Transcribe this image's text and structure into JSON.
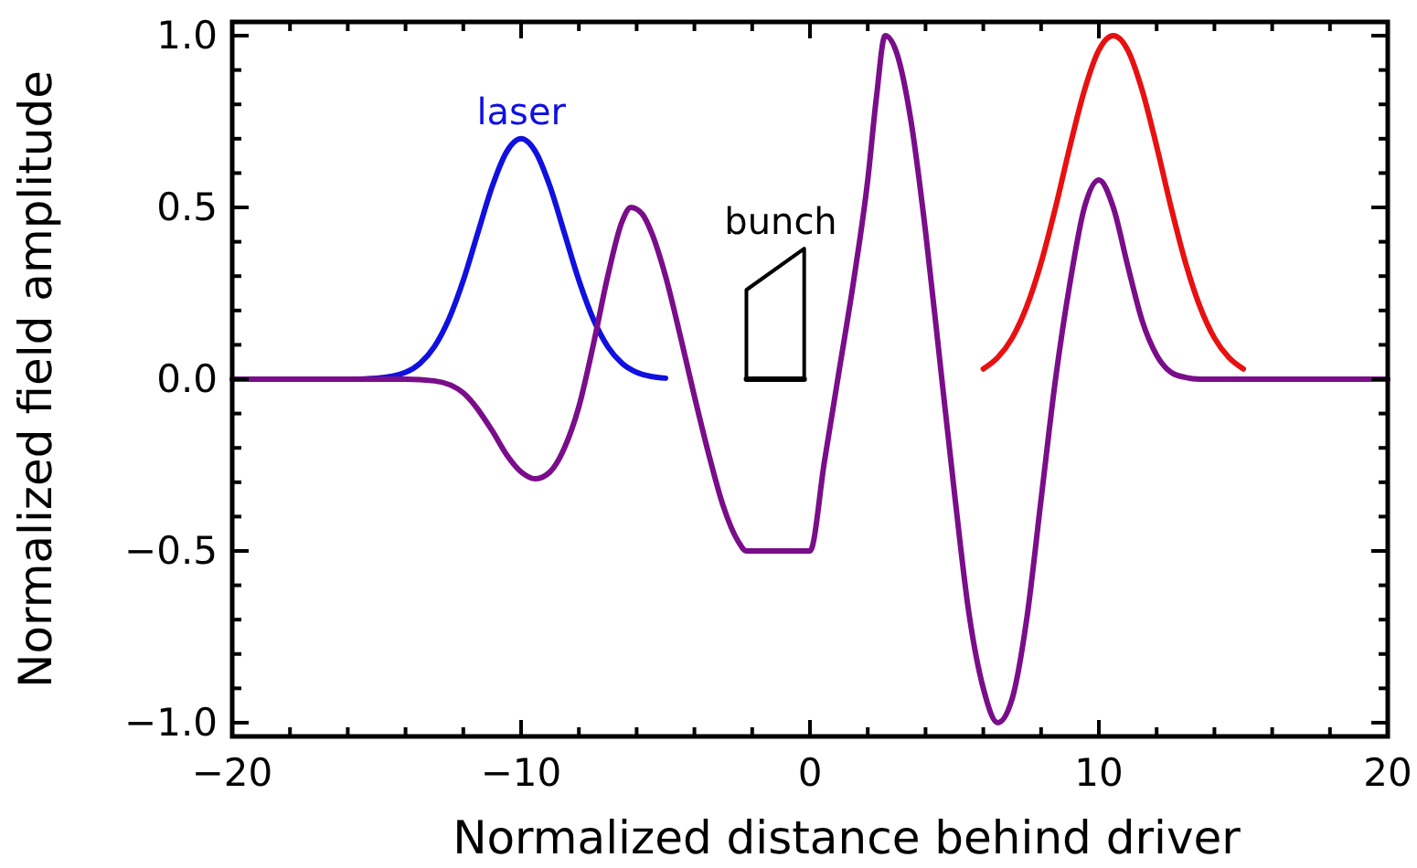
{
  "chart_data": {
    "type": "line",
    "xlabel": "Normalized distance behind driver",
    "ylabel": "Normalized field amplitude",
    "xlim": [
      -20,
      20
    ],
    "ylim": [
      -1.04,
      1.04
    ],
    "xticks": [
      {
        "value": -20,
        "label": "−20"
      },
      {
        "value": -18,
        "label": null
      },
      {
        "value": -16,
        "label": null
      },
      {
        "value": -14,
        "label": null
      },
      {
        "value": -12,
        "label": null
      },
      {
        "value": -10,
        "label": "−10"
      },
      {
        "value": -8,
        "label": null
      },
      {
        "value": -6,
        "label": null
      },
      {
        "value": -4,
        "label": null
      },
      {
        "value": -2,
        "label": null
      },
      0,
      {
        "value": 2,
        "label": null
      },
      {
        "value": 4,
        "label": null
      },
      {
        "value": 6,
        "label": null
      },
      {
        "value": 8,
        "label": null
      },
      10,
      {
        "value": 12,
        "label": null
      },
      {
        "value": 14,
        "label": null
      },
      {
        "value": 16,
        "label": null
      },
      {
        "value": 18,
        "label": null
      },
      20
    ],
    "yticks": [
      {
        "value": -1,
        "label": "−1.0"
      },
      {
        "value": -0.9,
        "label": null
      },
      {
        "value": -0.8,
        "label": null
      },
      {
        "value": -0.7,
        "label": null
      },
      {
        "value": -0.6,
        "label": null
      },
      {
        "value": -0.5,
        "label": "−0.5"
      },
      {
        "value": -0.4,
        "label": null
      },
      {
        "value": -0.3,
        "label": null
      },
      {
        "value": -0.2,
        "label": null
      },
      {
        "value": -0.1,
        "label": null
      },
      {
        "value": 0,
        "label": "0.0"
      },
      {
        "value": 0.1,
        "label": null
      },
      {
        "value": 0.2,
        "label": null
      },
      {
        "value": 0.3,
        "label": null
      },
      {
        "value": 0.4,
        "label": null
      },
      {
        "value": 0.5,
        "label": "0.5"
      },
      {
        "value": 0.6,
        "label": null
      },
      {
        "value": 0.7,
        "label": null
      },
      {
        "value": 0.8,
        "label": null
      },
      {
        "value": 0.9,
        "label": null
      },
      {
        "value": 1,
        "label": "1.0"
      }
    ],
    "grid": false,
    "marker": "none",
    "line_style": "solid",
    "series": [
      {
        "name": "laser",
        "color": "#1010e0",
        "x": [
          -16,
          -15,
          -14,
          -13.5,
          -13,
          -12.5,
          -12,
          -11.5,
          -11,
          -10.5,
          -10,
          -9.5,
          -9,
          -8.5,
          -8,
          -7.5,
          -7,
          -6.5,
          -6,
          -5.5,
          -5
        ],
        "values": [
          0,
          0.003,
          0.02,
          0.046,
          0.095,
          0.175,
          0.288,
          0.425,
          0.561,
          0.662,
          0.7,
          0.662,
          0.561,
          0.425,
          0.288,
          0.175,
          0.095,
          0.046,
          0.02,
          0.008,
          0.003
        ]
      },
      {
        "color": "#e81010",
        "x": [
          6,
          6.5,
          7,
          7.5,
          8,
          8.5,
          9,
          9.5,
          10,
          10.5,
          11,
          11.5,
          12,
          12.5,
          13,
          13.5,
          14,
          14.5,
          15
        ],
        "values": [
          0.03,
          0.063,
          0.12,
          0.211,
          0.339,
          0.5,
          0.678,
          0.841,
          0.958,
          1.0,
          0.958,
          0.841,
          0.678,
          0.5,
          0.339,
          0.211,
          0.12,
          0.063,
          0.03
        ]
      },
      {
        "name": "bunch",
        "color": "#000000",
        "x": [
          -2.2,
          -2.2,
          -0.2,
          -0.2
        ],
        "values": [
          0,
          0.26,
          0.38,
          0
        ]
      },
      {
        "color": "#000000",
        "x": [
          -2.2,
          -1.2,
          -0.2
        ],
        "values": [
          0,
          0,
          0
        ]
      },
      {
        "color": "#7a0d8a",
        "x": [
          -20,
          -14,
          -13,
          -12,
          -11,
          -10.5,
          -10,
          -9.5,
          -9,
          -8.5,
          -8,
          -7.5,
          -7,
          -6.5,
          -6.2,
          -5.8,
          -5.5,
          -5,
          -4.5,
          -4,
          -3.5,
          -3,
          -2.5,
          -2.2,
          0,
          0.5,
          1,
          1.5,
          2,
          2.3,
          2.6,
          3,
          3.5,
          4,
          4.5,
          5,
          5.5,
          6,
          6.5,
          7,
          7.5,
          8,
          8.5,
          9,
          9.5,
          10,
          10.5,
          11,
          11.5,
          12,
          12.5,
          13,
          13.5,
          20
        ],
        "values": [
          0,
          0,
          -0.005,
          -0.04,
          -0.15,
          -0.22,
          -0.27,
          -0.29,
          -0.27,
          -0.2,
          -0.08,
          0.1,
          0.3,
          0.46,
          0.5,
          0.48,
          0.43,
          0.3,
          0.13,
          -0.05,
          -0.22,
          -0.37,
          -0.47,
          -0.5,
          -0.5,
          -0.24,
          0.02,
          0.28,
          0.58,
          0.82,
          1.0,
          0.95,
          0.75,
          0.43,
          0.05,
          -0.33,
          -0.68,
          -0.9,
          -1.0,
          -0.93,
          -0.7,
          -0.35,
          0.0,
          0.28,
          0.5,
          0.58,
          0.5,
          0.33,
          0.17,
          0.07,
          0.02,
          0.005,
          0,
          0
        ]
      }
    ]
  }
}
